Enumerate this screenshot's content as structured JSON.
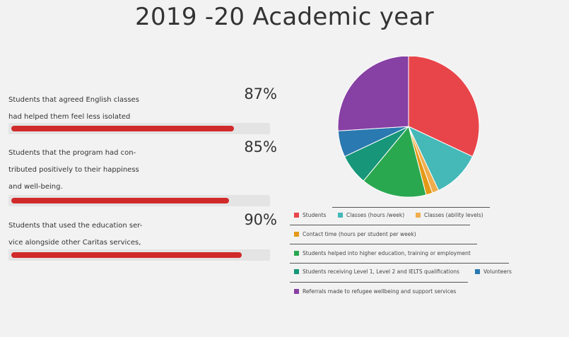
{
  "title": "2019 -20 Academic year",
  "stats": [
    {
      "label_lines": [
        "Students that agreed English classes",
        "had helped them feel less isolated"
      ],
      "value_text": "87%",
      "value": 87
    },
    {
      "label_lines": [
        "Students that the program had con-",
        "tributed positively to their happiness",
        "and well-being."
      ],
      "value_text": "85%",
      "value": 85
    },
    {
      "label_lines": [
        "Students that used the education ser-",
        "vice alongside other Caritas services,"
      ],
      "value_text": "90%",
      "value": 90
    }
  ],
  "chart_data": {
    "type": "pie",
    "slices": [
      {
        "label": "Students",
        "value": 32,
        "color": "#e8454a"
      },
      {
        "label": "Classes (hours /week)",
        "value": 11,
        "color": "#45b8b8"
      },
      {
        "label": "Classes (ability levels)",
        "value": 1.5,
        "color": "#f0ad4e"
      },
      {
        "label": "Contact time (hours per student per week)",
        "value": 1.5,
        "color": "#e39a16"
      },
      {
        "label": "Students helped into higher education, training or employment",
        "value": 15,
        "color": "#2aa84f"
      },
      {
        "label": "Students receiving Level 1, Level 2 and IELTS qualifications",
        "value": 7,
        "color": "#17967a"
      },
      {
        "label": "Volunteers",
        "value": 6,
        "color": "#2a79b0"
      },
      {
        "label": "Referrals made to refugee wellbeing and support services",
        "value": 26,
        "color": "#8740a4"
      }
    ],
    "legend_position": "bottom"
  }
}
